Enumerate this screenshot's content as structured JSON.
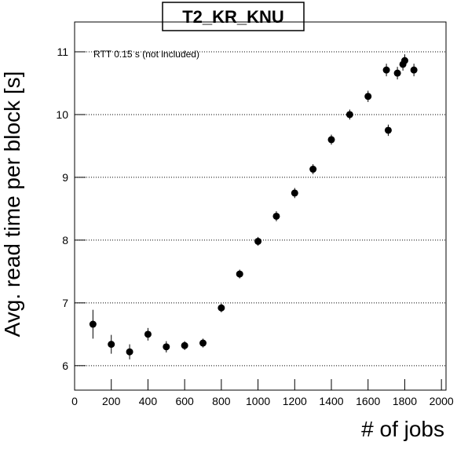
{
  "chart_data": {
    "type": "scatter",
    "title": "T2_KR_KNU",
    "x_label": "# of jobs",
    "y_label": "Avg. read time per block [s]",
    "annotation": "RTT 0.15 s (not included)",
    "xlim": [
      0,
      2025
    ],
    "ylim": [
      5.61,
      11.475
    ],
    "xticks": [
      0,
      200,
      400,
      600,
      800,
      1000,
      1200,
      1400,
      1600,
      1800,
      2000
    ],
    "yticks": [
      6,
      7,
      8,
      9,
      10,
      11
    ],
    "grid": true,
    "series": [
      {
        "color": "#000000",
        "x": [
          100,
          200,
          300,
          400,
          500,
          600,
          700,
          800,
          900,
          1000,
          1100,
          1200,
          1300,
          1400,
          1500,
          1600,
          1700,
          1710,
          1760,
          1790,
          1800,
          1850
        ],
        "values": [
          6.66,
          6.34,
          6.22,
          6.5,
          6.3,
          6.32,
          6.36,
          6.92,
          7.46,
          7.98,
          8.38,
          8.75,
          9.13,
          9.6,
          10.0,
          10.29,
          10.71,
          9.75,
          10.66,
          10.8,
          10.86,
          10.71
        ],
        "errors": [
          0.23,
          0.15,
          0.12,
          0.1,
          0.09,
          0.07,
          0.07,
          0.07,
          0.07,
          0.07,
          0.08,
          0.08,
          0.08,
          0.08,
          0.08,
          0.09,
          0.1,
          0.09,
          0.1,
          0.1,
          0.1,
          0.1
        ]
      }
    ]
  }
}
